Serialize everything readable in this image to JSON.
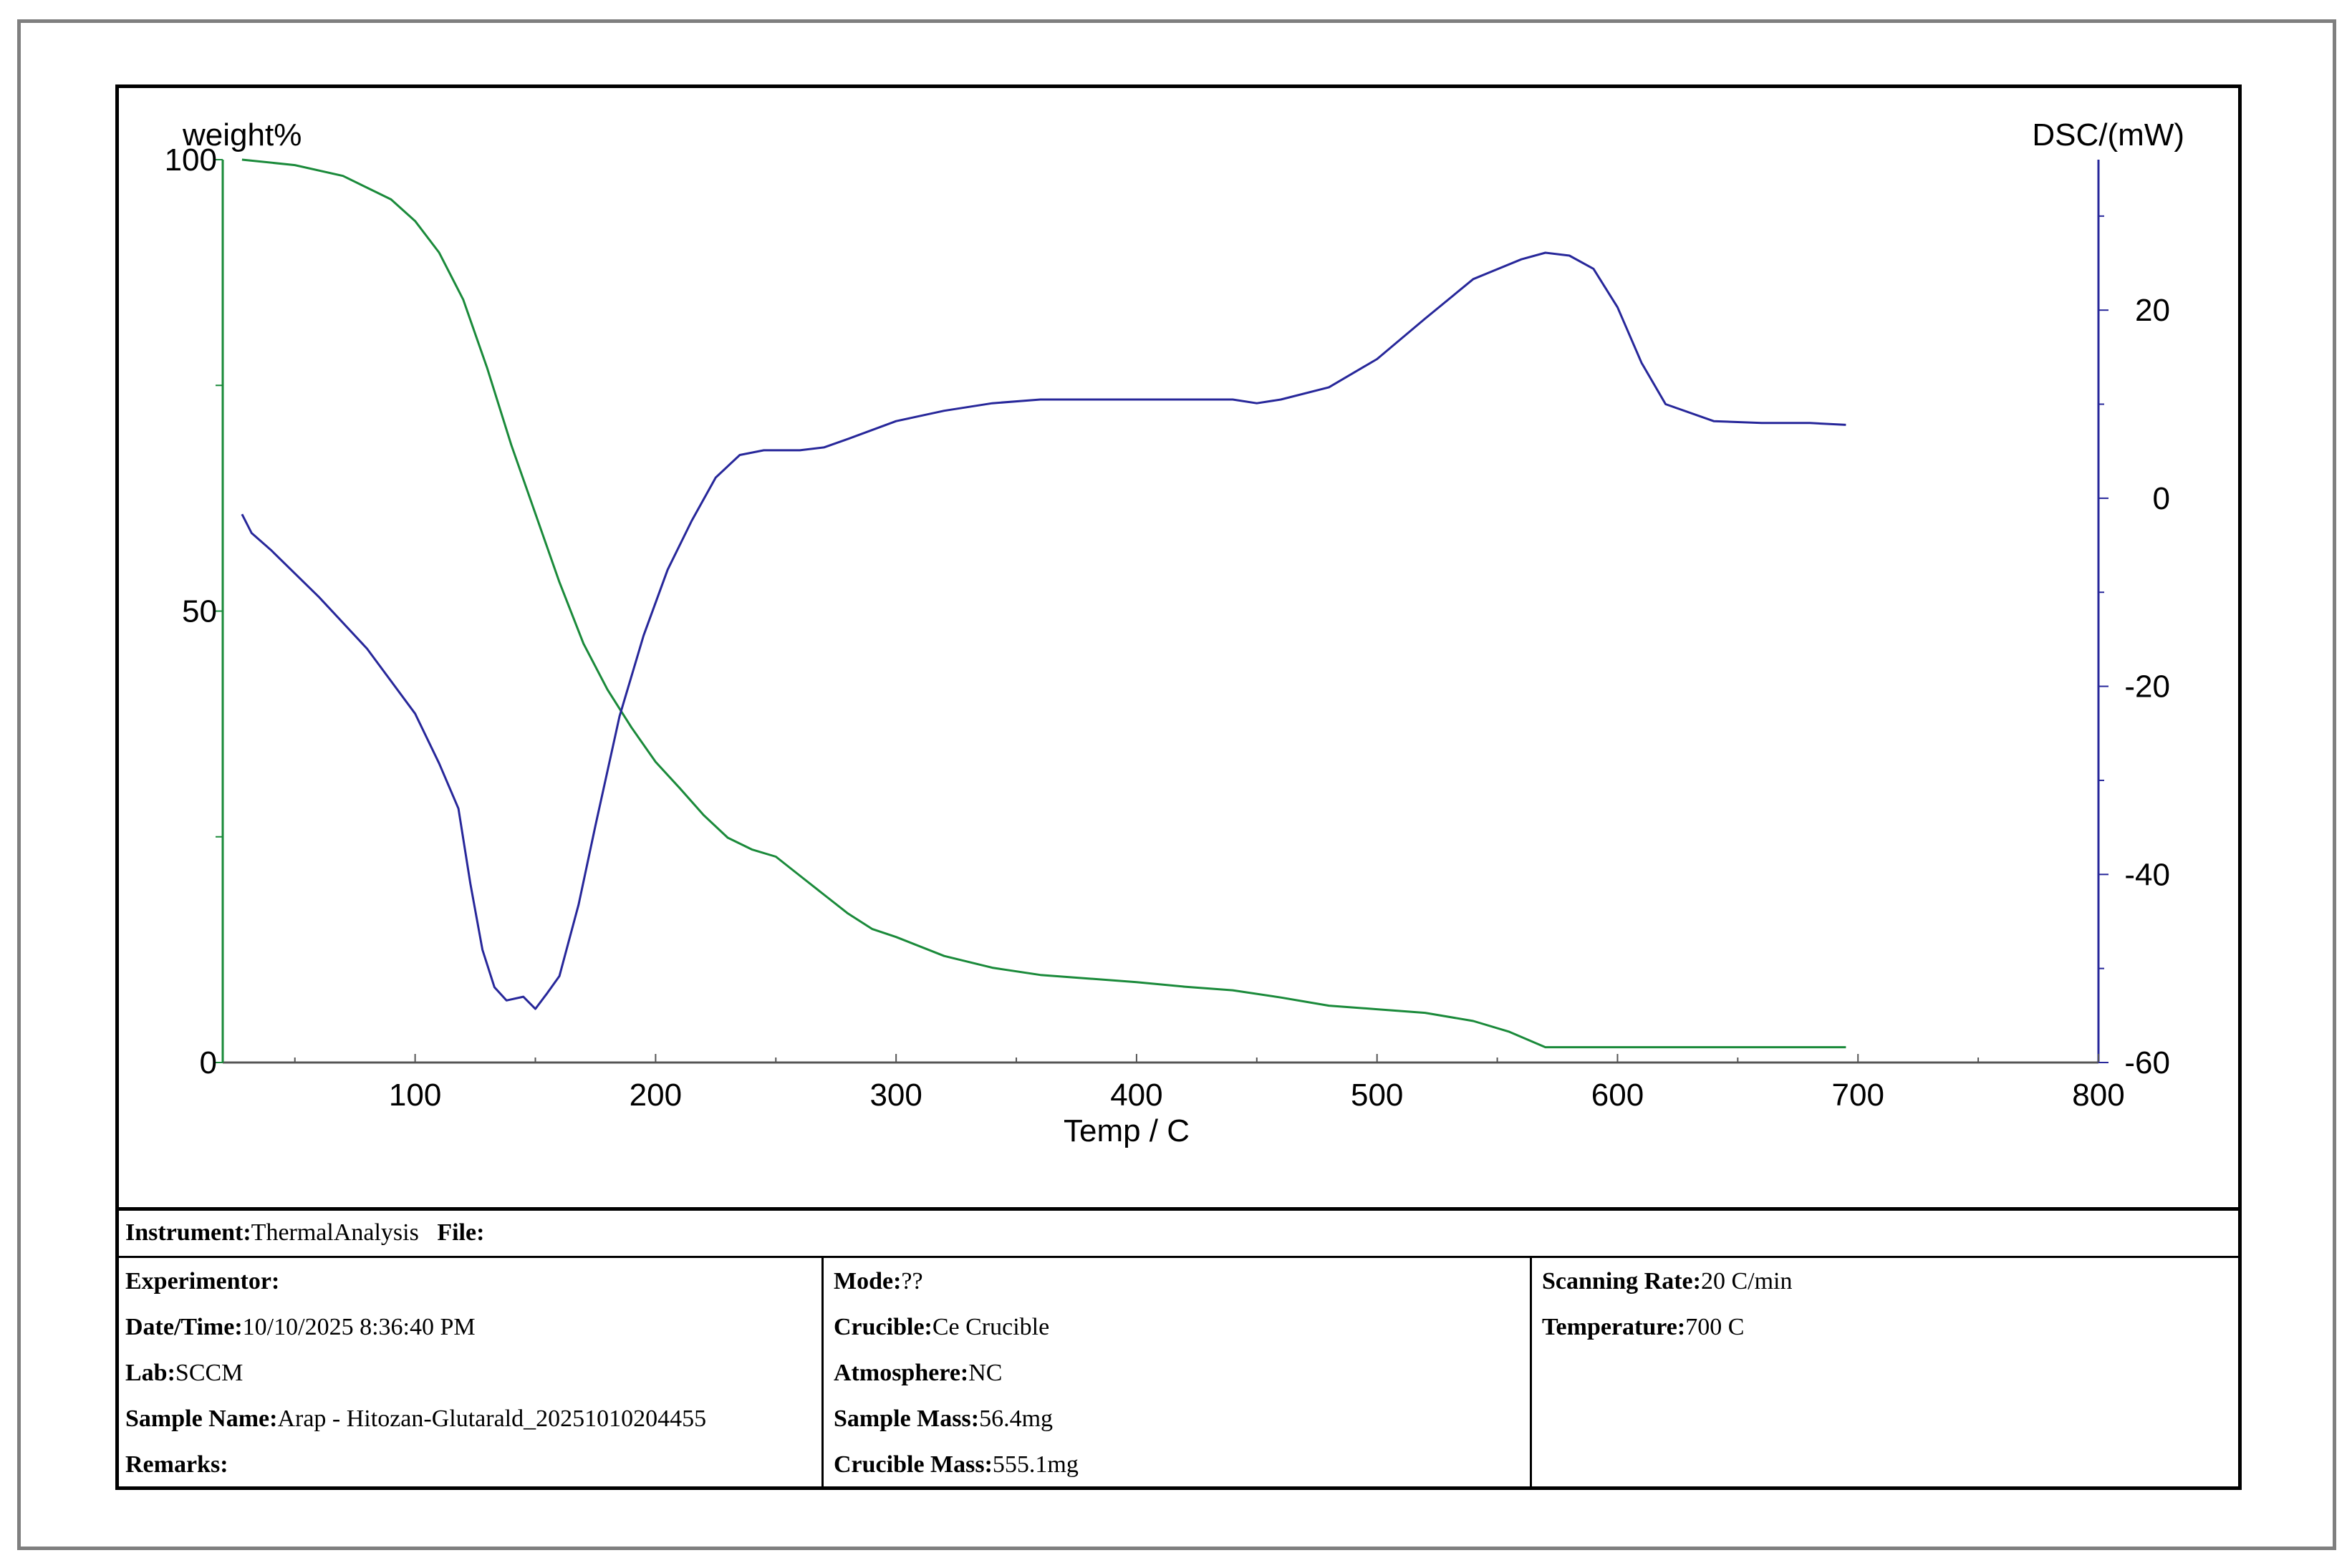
{
  "chart_data": {
    "type": "line",
    "xlabel": "Temp / C",
    "x_ticks": [
      100,
      200,
      300,
      400,
      500,
      600,
      700,
      800
    ],
    "xlim": [
      20,
      800
    ],
    "y_left": {
      "label": "weight%",
      "ticks": [
        0,
        50,
        100
      ],
      "ylim": [
        0,
        100
      ]
    },
    "y_right": {
      "label": "DSC/(mW)",
      "ticks": [
        -60,
        -40,
        -20,
        0,
        20
      ],
      "ylim": [
        -60,
        36
      ]
    },
    "series": [
      {
        "axis": "left",
        "color": "#1a8a3a",
        "x": [
          28,
          50,
          70,
          90,
          100,
          110,
          120,
          130,
          140,
          150,
          160,
          170,
          180,
          190,
          200,
          210,
          220,
          230,
          240,
          250,
          260,
          270,
          280,
          290,
          300,
          320,
          340,
          360,
          380,
          400,
          420,
          440,
          460,
          480,
          500,
          520,
          540,
          555,
          570,
          600,
          650,
          695
        ],
        "y": [
          100,
          99.4,
          98.2,
          95.6,
          93.2,
          89.7,
          84.5,
          76.9,
          68.4,
          60.8,
          53.2,
          46.4,
          41.3,
          37.1,
          33.3,
          30.4,
          27.4,
          24.9,
          23.6,
          22.8,
          20.7,
          18.6,
          16.5,
          14.8,
          13.9,
          11.8,
          10.5,
          9.7,
          9.3,
          8.9,
          8.4,
          8.0,
          7.2,
          6.3,
          5.9,
          5.5,
          4.6,
          3.4,
          1.7,
          1.7,
          1.7,
          1.7
        ]
      },
      {
        "axis": "right",
        "color": "#27279a",
        "x": [
          28,
          32,
          40,
          60,
          80,
          100,
          110,
          118,
          123,
          128,
          133,
          138,
          145,
          150,
          155,
          160,
          168,
          175,
          185,
          195,
          205,
          215,
          225,
          235,
          245,
          260,
          270,
          280,
          300,
          320,
          340,
          360,
          380,
          400,
          420,
          440,
          450,
          460,
          480,
          500,
          520,
          540,
          560,
          570,
          580,
          590,
          600,
          610,
          620,
          640,
          660,
          680,
          695
        ],
        "y": [
          -1.7,
          -3.7,
          -5.5,
          -10.5,
          -16,
          -22.9,
          -28.2,
          -33,
          -41,
          -48,
          -52,
          -53.4,
          -53,
          -54.3,
          -52.6,
          -50.8,
          -43.2,
          -34.8,
          -23.2,
          -14.6,
          -7.6,
          -2.4,
          2.2,
          4.6,
          5.1,
          5.1,
          5.4,
          6.3,
          8.2,
          9.3,
          10.1,
          10.5,
          10.5,
          10.5,
          10.5,
          10.5,
          10.1,
          10.5,
          11.8,
          14.8,
          19.1,
          23.3,
          25.4,
          26.1,
          25.8,
          24.4,
          20.3,
          14.4,
          10.0,
          8.2,
          8.0,
          8.0,
          7.8
        ]
      }
    ]
  },
  "info": {
    "instrument_label": "Instrument:",
    "instrument_value": "ThermalAnalysis",
    "file_label": "File:",
    "file_value": "",
    "experimentor_label": "Experimentor:",
    "experimentor_value": "",
    "datetime_label": "Date/Time:",
    "datetime_value": "10/10/2025 8:36:40 PM",
    "lab_label": "Lab:",
    "lab_value": "SCCM",
    "sample_name_label": "Sample Name:",
    "sample_name_value": "Arap - Hitozan-Glutarald_20251010204455",
    "remarks_label": "Remarks:",
    "remarks_value": "",
    "mode_label": "Mode:",
    "mode_value": "??",
    "crucible_label": "Crucible:",
    "crucible_value": "Ce Crucible",
    "atmosphere_label": "Atmosphere:",
    "atmosphere_value": "NC",
    "sample_mass_label": "Sample Mass:",
    "sample_mass_value": "56.4mg",
    "crucible_mass_label": "Crucible Mass:",
    "crucible_mass_value": "555.1mg",
    "scanning_rate_label": "Scanning Rate:",
    "scanning_rate_value": "20 C/min",
    "temperature_label": "Temperature:",
    "temperature_value": "700 C"
  }
}
